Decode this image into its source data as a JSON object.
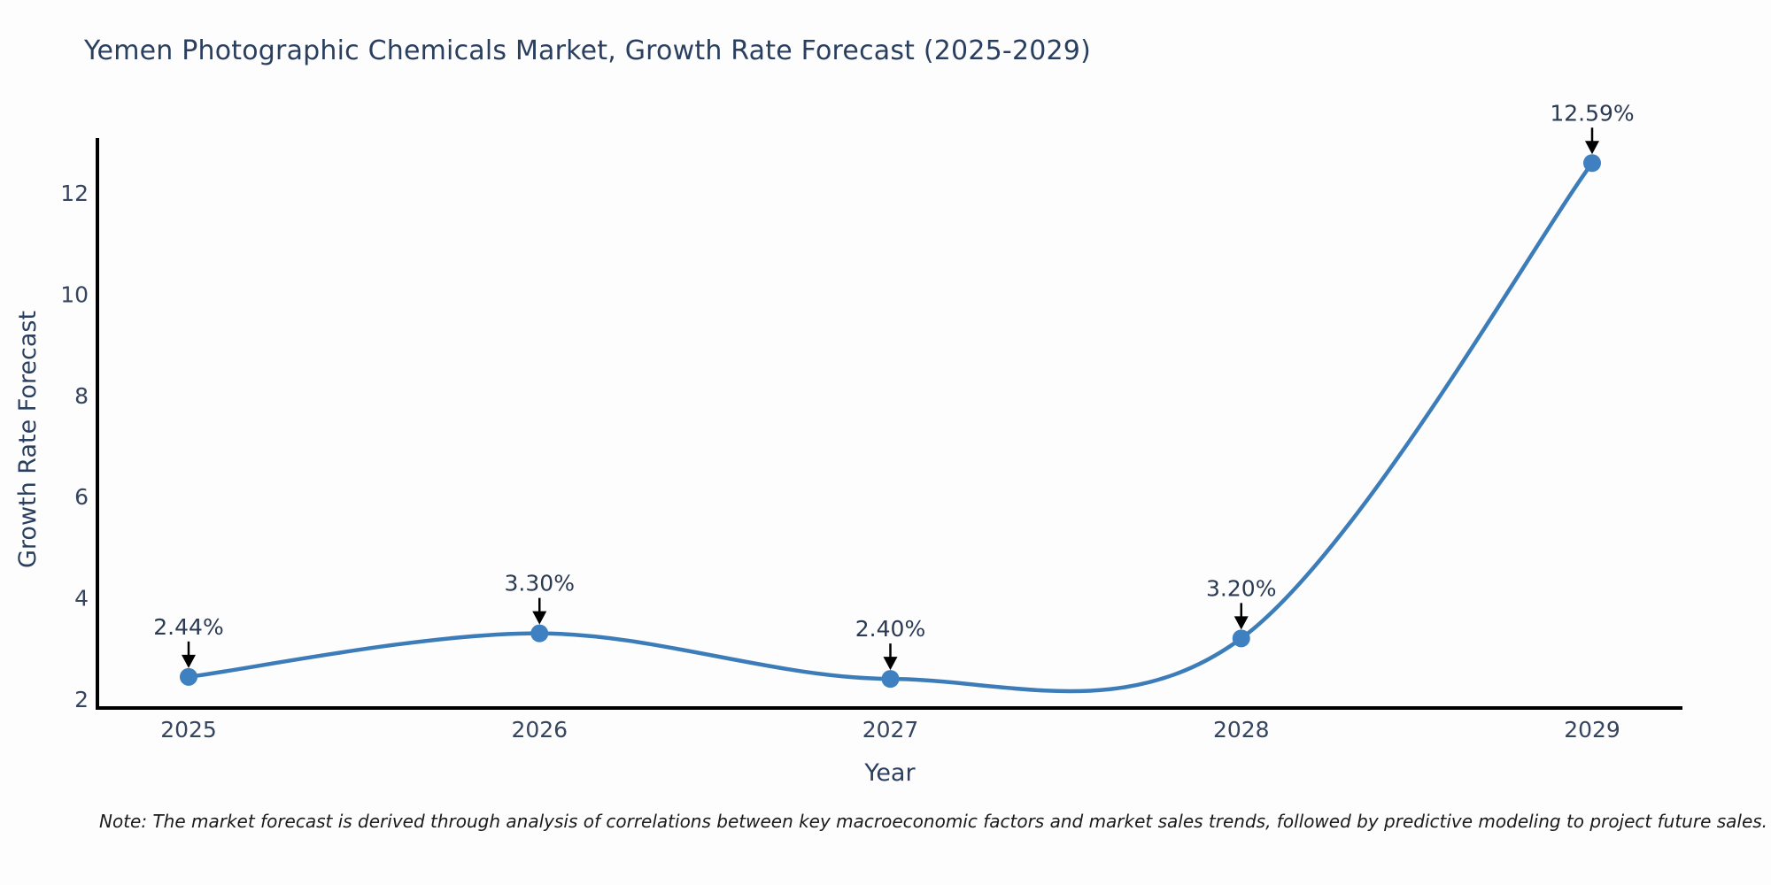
{
  "note": "Note: The market forecast is derived through analysis of correlations between key macroeconomic factors and market sales trends, followed by predictive modeling to project future sales.",
  "chart_data": {
    "type": "line",
    "title": "Yemen Photographic Chemicals Market, Growth Rate Forecast (2025-2029)",
    "xlabel": "Year",
    "ylabel": "Growth Rate Forecast",
    "x": [
      2025,
      2026,
      2027,
      2028,
      2029
    ],
    "series": [
      {
        "name": "Growth Rate Forecast",
        "values": [
          2.44,
          3.3,
          2.4,
          3.2,
          12.59
        ]
      }
    ],
    "point_labels": [
      "2.44%",
      "3.30%",
      "2.40%",
      "3.20%",
      "12.59%"
    ],
    "yticks": [
      2,
      4,
      6,
      8,
      10,
      12
    ],
    "ylim": [
      1.8,
      13.3
    ],
    "grid": false,
    "legend": "none",
    "curve": "spline",
    "line_color": "#3c7db9",
    "marker_color": "#3e80c0",
    "annotation_arrow_color": "#000000",
    "axis_color": "#000000"
  },
  "colors": {
    "title": "#2a3f5f",
    "tick": "#36455f",
    "note": "#1a1a1a",
    "background": "#fdfdfd"
  }
}
